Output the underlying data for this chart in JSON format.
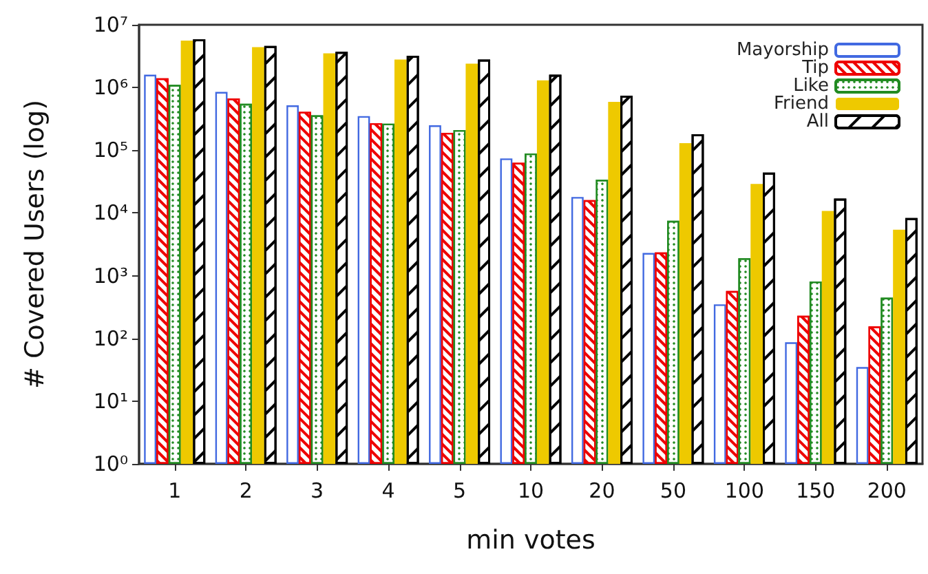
{
  "chart_data": {
    "type": "bar",
    "xlabel": "min votes",
    "ylabel": "# Covered Users (log)",
    "categories": [
      "1",
      "2",
      "3",
      "4",
      "5",
      "10",
      "20",
      "50",
      "100",
      "150",
      "200"
    ],
    "log": true,
    "grid": false,
    "legend": "top right",
    "ylim": [
      1,
      10000000
    ],
    "yticks": [
      {
        "value": 1,
        "label": "10⁰"
      },
      {
        "value": 10,
        "label": "10¹"
      },
      {
        "value": 100,
        "label": "10²"
      },
      {
        "value": 1000,
        "label": "10³"
      },
      {
        "value": 10000,
        "label": "10⁴"
      },
      {
        "value": 100000,
        "label": "10⁵"
      },
      {
        "value": 1000000,
        "label": "10⁶"
      },
      {
        "value": 10000000,
        "label": "10⁷"
      }
    ],
    "series": [
      {
        "name": "Mayorship",
        "color": "#4169e1",
        "values": [
          1600000,
          850000,
          520000,
          350000,
          250000,
          74000,
          18000,
          2300,
          350,
          87,
          35
        ]
      },
      {
        "name": "Tip",
        "color": "#ee0000",
        "values": [
          1400000,
          670000,
          410000,
          270000,
          190000,
          63000,
          16000,
          2350,
          570,
          230,
          155
        ]
      },
      {
        "name": "Like",
        "color": "#228b22",
        "values": [
          1100000,
          550000,
          360000,
          265000,
          210000,
          89000,
          34000,
          7500,
          1900,
          810,
          445
        ]
      },
      {
        "name": "Friend",
        "color": "#eec900",
        "values": [
          5600000,
          4400000,
          3500000,
          2800000,
          2400000,
          1300000,
          590000,
          130000,
          29000,
          10800,
          5400
        ]
      },
      {
        "name": "All",
        "color": "#000000",
        "values": [
          5900000,
          4600000,
          3700000,
          3200000,
          2800000,
          1600000,
          740000,
          180000,
          44000,
          17000,
          8300
        ]
      }
    ]
  }
}
